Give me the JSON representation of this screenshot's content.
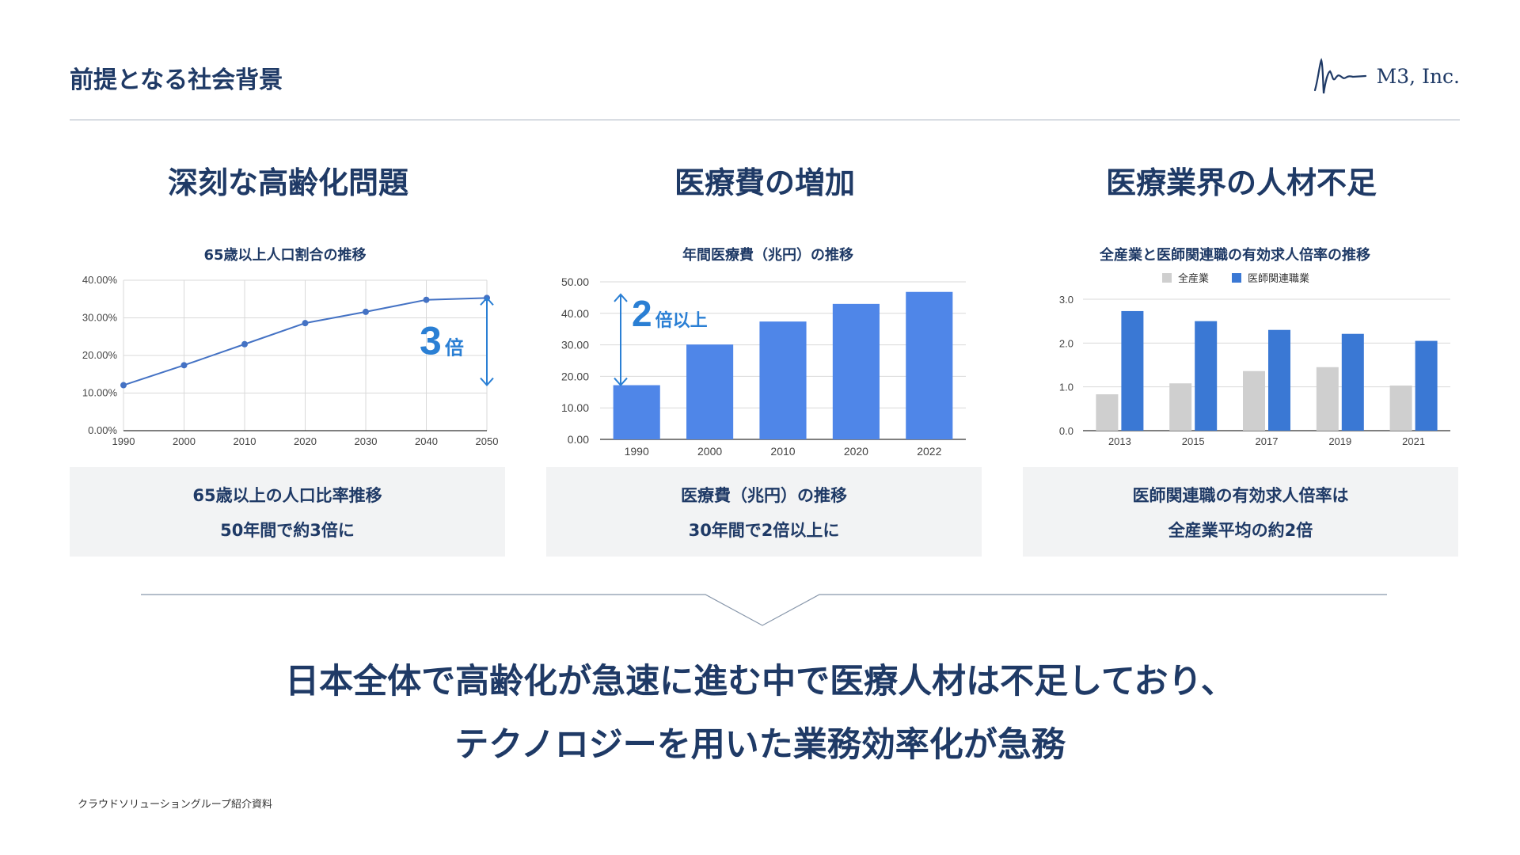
{
  "header": {
    "title": "前提となる社会背景",
    "logo_text": "M3, Inc."
  },
  "columns": [
    {
      "heading": "深刻な高齢化問題",
      "note_line1": "65歳以上の人口比率推移",
      "note_line2": "50年間で約3倍に"
    },
    {
      "heading": "医療費の増加",
      "note_line1": "医療費（兆円）の推移",
      "note_line2": "30年間で2倍以上に"
    },
    {
      "heading": "医療業界の人材不足",
      "note_line1": "医師関連職の有効求人倍率は",
      "note_line2": "全産業平均の約2倍"
    }
  ],
  "conclusion": {
    "line1": "日本全体で高齢化が急速に進む中で医療人材は不足しており、",
    "line2": "テクノロジーを用いた業務効率化が急務"
  },
  "footer": {
    "text": "クラウドソリューショングループ紹介資料"
  },
  "colors": {
    "navy": "#1f3a66",
    "line_blue": "#4472c4",
    "bar_blue": "#4f86e8",
    "dark_blue": "#3a78d4",
    "gray": "#cfcfcf",
    "accent": "#2a7fd4"
  },
  "chart_data": [
    {
      "type": "line",
      "title": "65歳以上人口割合の推移",
      "x": [
        1990,
        2000,
        2010,
        2020,
        2030,
        2040,
        2050
      ],
      "values": [
        12.1,
        17.4,
        23.0,
        28.6,
        31.6,
        34.8,
        35.3
      ],
      "y_tick_labels": [
        "0.00%",
        "10.00%",
        "20.00%",
        "30.00%",
        "40.00%"
      ],
      "ylim": [
        0,
        40
      ],
      "annotation": {
        "big": "3",
        "small": "倍"
      },
      "grid": true
    },
    {
      "type": "bar",
      "title": "年間医療費（兆円）の推移",
      "categories": [
        "1990",
        "2000",
        "2010",
        "2020",
        "2022"
      ],
      "values": [
        17.2,
        30.1,
        37.4,
        43.0,
        46.8
      ],
      "y_tick_labels": [
        "0.00",
        "10.00",
        "20.00",
        "30.00",
        "40.00",
        "50.00"
      ],
      "ylim": [
        0,
        50
      ],
      "annotation": {
        "big": "2",
        "small": "倍以上"
      },
      "grid": true
    },
    {
      "type": "bar",
      "title": "全産業と医師関連職の有効求人倍率の推移",
      "categories": [
        "2013",
        "2015",
        "2017",
        "2019",
        "2021"
      ],
      "series": [
        {
          "name": "全産業",
          "values": [
            0.83,
            1.08,
            1.36,
            1.45,
            1.03
          ]
        },
        {
          "name": "医師関連職業",
          "values": [
            2.73,
            2.5,
            2.3,
            2.21,
            2.05
          ]
        }
      ],
      "y_tick_labels": [
        "0.0",
        "1.0",
        "2.0",
        "3.0"
      ],
      "ylim": [
        0,
        3
      ],
      "legend": "top",
      "grid": true
    }
  ]
}
